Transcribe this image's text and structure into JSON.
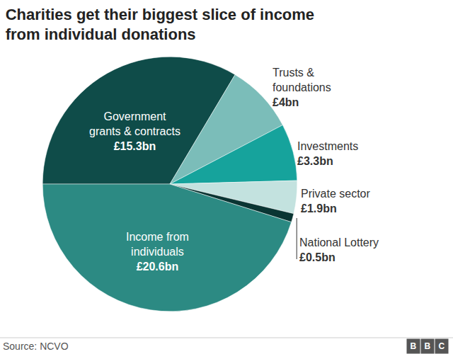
{
  "chart_data": {
    "type": "pie",
    "title": "Charities get their biggest slice of income from individual donations",
    "categories": [
      "Government grants & contracts",
      "Trusts & foundations",
      "Investments",
      "Private sector",
      "National Lottery",
      "Income from individuals"
    ],
    "values": [
      15.3,
      4,
      3.3,
      1.9,
      0.5,
      20.6
    ],
    "value_labels": [
      "£15.3bn",
      "£4bn",
      "£3.3bn",
      "£1.9bn",
      "£0.5bn",
      "£20.6bn"
    ],
    "colors": [
      "#0f4c49",
      "#7bbdb9",
      "#16a39c",
      "#c3e2df",
      "#0a3533",
      "#2c8a83"
    ],
    "data_labels": true,
    "source": "Source: NCVO",
    "logo": "BBC"
  }
}
